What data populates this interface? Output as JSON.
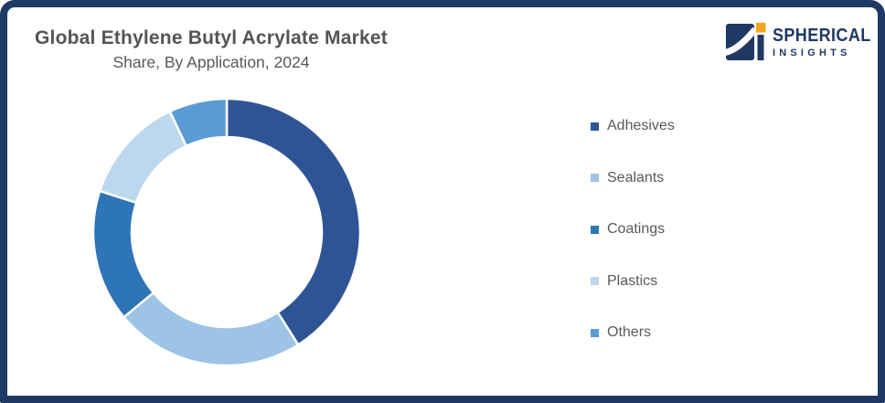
{
  "frame": {
    "border_color": "#1F3864",
    "background": "#FFFFFF"
  },
  "header": {
    "title": "Global Ethylene Butyl Acrylate Market",
    "subtitle": "Share, By Application, 2024"
  },
  "logo": {
    "line1": "SPHERICAL",
    "line2": "INSIGHTS",
    "navy": "#1F3864",
    "orange": "#F5A21C"
  },
  "chart_data": {
    "type": "pie",
    "subtype": "donut",
    "title": "Global Ethylene Butyl Acrylate Market Share, By Application, 2024",
    "categories": [
      "Adhesives",
      "Sealants",
      "Coatings",
      "Plastics",
      "Others"
    ],
    "values": [
      41,
      23,
      16,
      13,
      7
    ],
    "values_note": "percent share estimated from arc angles; no numeric labels shown in chart",
    "colors": [
      "#2F5496",
      "#9DC3E6",
      "#2E75B6",
      "#BDD7EE",
      "#5B9BD5"
    ],
    "start_angle_deg": 0,
    "direction": "clockwise",
    "outer_radius": 146,
    "inner_radius": 104,
    "separator_color": "#FFFFFF",
    "legend_position": "right",
    "slice_labels_shown": false
  },
  "legend": {
    "items": [
      {
        "label": "Adhesives",
        "color": "#2F5496"
      },
      {
        "label": "Sealants",
        "color": "#9DC3E6"
      },
      {
        "label": "Coatings",
        "color": "#2E75B6"
      },
      {
        "label": "Plastics",
        "color": "#BDD7EE"
      },
      {
        "label": "Others",
        "color": "#5B9BD5"
      }
    ]
  }
}
